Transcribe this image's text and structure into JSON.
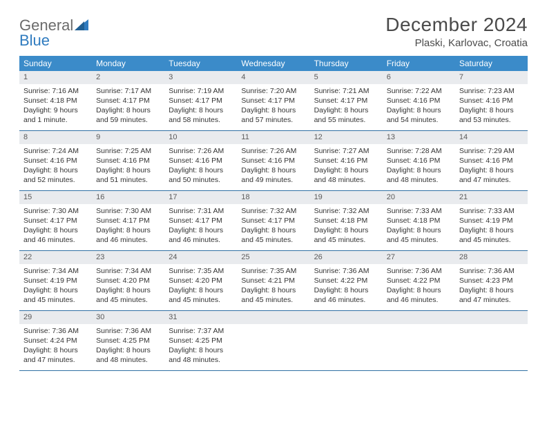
{
  "brand": {
    "part1": "General",
    "part2": "Blue"
  },
  "title": "December 2024",
  "location": "Plaski, Karlovac, Croatia",
  "colors": {
    "header_bg": "#3b8bc9",
    "header_text": "#ffffff",
    "daynum_bg": "#e9ebee",
    "week_divider": "#2f6fa3",
    "brand_gray": "#6b6b6b",
    "brand_blue": "#2f7bbf"
  },
  "dow": [
    "Sunday",
    "Monday",
    "Tuesday",
    "Wednesday",
    "Thursday",
    "Friday",
    "Saturday"
  ],
  "weeks": [
    [
      {
        "n": "1",
        "sr": "Sunrise: 7:16 AM",
        "ss": "Sunset: 4:18 PM",
        "dl1": "Daylight: 9 hours",
        "dl2": "and 1 minute."
      },
      {
        "n": "2",
        "sr": "Sunrise: 7:17 AM",
        "ss": "Sunset: 4:17 PM",
        "dl1": "Daylight: 8 hours",
        "dl2": "and 59 minutes."
      },
      {
        "n": "3",
        "sr": "Sunrise: 7:19 AM",
        "ss": "Sunset: 4:17 PM",
        "dl1": "Daylight: 8 hours",
        "dl2": "and 58 minutes."
      },
      {
        "n": "4",
        "sr": "Sunrise: 7:20 AM",
        "ss": "Sunset: 4:17 PM",
        "dl1": "Daylight: 8 hours",
        "dl2": "and 57 minutes."
      },
      {
        "n": "5",
        "sr": "Sunrise: 7:21 AM",
        "ss": "Sunset: 4:17 PM",
        "dl1": "Daylight: 8 hours",
        "dl2": "and 55 minutes."
      },
      {
        "n": "6",
        "sr": "Sunrise: 7:22 AM",
        "ss": "Sunset: 4:16 PM",
        "dl1": "Daylight: 8 hours",
        "dl2": "and 54 minutes."
      },
      {
        "n": "7",
        "sr": "Sunrise: 7:23 AM",
        "ss": "Sunset: 4:16 PM",
        "dl1": "Daylight: 8 hours",
        "dl2": "and 53 minutes."
      }
    ],
    [
      {
        "n": "8",
        "sr": "Sunrise: 7:24 AM",
        "ss": "Sunset: 4:16 PM",
        "dl1": "Daylight: 8 hours",
        "dl2": "and 52 minutes."
      },
      {
        "n": "9",
        "sr": "Sunrise: 7:25 AM",
        "ss": "Sunset: 4:16 PM",
        "dl1": "Daylight: 8 hours",
        "dl2": "and 51 minutes."
      },
      {
        "n": "10",
        "sr": "Sunrise: 7:26 AM",
        "ss": "Sunset: 4:16 PM",
        "dl1": "Daylight: 8 hours",
        "dl2": "and 50 minutes."
      },
      {
        "n": "11",
        "sr": "Sunrise: 7:26 AM",
        "ss": "Sunset: 4:16 PM",
        "dl1": "Daylight: 8 hours",
        "dl2": "and 49 minutes."
      },
      {
        "n": "12",
        "sr": "Sunrise: 7:27 AM",
        "ss": "Sunset: 4:16 PM",
        "dl1": "Daylight: 8 hours",
        "dl2": "and 48 minutes."
      },
      {
        "n": "13",
        "sr": "Sunrise: 7:28 AM",
        "ss": "Sunset: 4:16 PM",
        "dl1": "Daylight: 8 hours",
        "dl2": "and 48 minutes."
      },
      {
        "n": "14",
        "sr": "Sunrise: 7:29 AM",
        "ss": "Sunset: 4:16 PM",
        "dl1": "Daylight: 8 hours",
        "dl2": "and 47 minutes."
      }
    ],
    [
      {
        "n": "15",
        "sr": "Sunrise: 7:30 AM",
        "ss": "Sunset: 4:17 PM",
        "dl1": "Daylight: 8 hours",
        "dl2": "and 46 minutes."
      },
      {
        "n": "16",
        "sr": "Sunrise: 7:30 AM",
        "ss": "Sunset: 4:17 PM",
        "dl1": "Daylight: 8 hours",
        "dl2": "and 46 minutes."
      },
      {
        "n": "17",
        "sr": "Sunrise: 7:31 AM",
        "ss": "Sunset: 4:17 PM",
        "dl1": "Daylight: 8 hours",
        "dl2": "and 46 minutes."
      },
      {
        "n": "18",
        "sr": "Sunrise: 7:32 AM",
        "ss": "Sunset: 4:17 PM",
        "dl1": "Daylight: 8 hours",
        "dl2": "and 45 minutes."
      },
      {
        "n": "19",
        "sr": "Sunrise: 7:32 AM",
        "ss": "Sunset: 4:18 PM",
        "dl1": "Daylight: 8 hours",
        "dl2": "and 45 minutes."
      },
      {
        "n": "20",
        "sr": "Sunrise: 7:33 AM",
        "ss": "Sunset: 4:18 PM",
        "dl1": "Daylight: 8 hours",
        "dl2": "and 45 minutes."
      },
      {
        "n": "21",
        "sr": "Sunrise: 7:33 AM",
        "ss": "Sunset: 4:19 PM",
        "dl1": "Daylight: 8 hours",
        "dl2": "and 45 minutes."
      }
    ],
    [
      {
        "n": "22",
        "sr": "Sunrise: 7:34 AM",
        "ss": "Sunset: 4:19 PM",
        "dl1": "Daylight: 8 hours",
        "dl2": "and 45 minutes."
      },
      {
        "n": "23",
        "sr": "Sunrise: 7:34 AM",
        "ss": "Sunset: 4:20 PM",
        "dl1": "Daylight: 8 hours",
        "dl2": "and 45 minutes."
      },
      {
        "n": "24",
        "sr": "Sunrise: 7:35 AM",
        "ss": "Sunset: 4:20 PM",
        "dl1": "Daylight: 8 hours",
        "dl2": "and 45 minutes."
      },
      {
        "n": "25",
        "sr": "Sunrise: 7:35 AM",
        "ss": "Sunset: 4:21 PM",
        "dl1": "Daylight: 8 hours",
        "dl2": "and 45 minutes."
      },
      {
        "n": "26",
        "sr": "Sunrise: 7:36 AM",
        "ss": "Sunset: 4:22 PM",
        "dl1": "Daylight: 8 hours",
        "dl2": "and 46 minutes."
      },
      {
        "n": "27",
        "sr": "Sunrise: 7:36 AM",
        "ss": "Sunset: 4:22 PM",
        "dl1": "Daylight: 8 hours",
        "dl2": "and 46 minutes."
      },
      {
        "n": "28",
        "sr": "Sunrise: 7:36 AM",
        "ss": "Sunset: 4:23 PM",
        "dl1": "Daylight: 8 hours",
        "dl2": "and 47 minutes."
      }
    ],
    [
      {
        "n": "29",
        "sr": "Sunrise: 7:36 AM",
        "ss": "Sunset: 4:24 PM",
        "dl1": "Daylight: 8 hours",
        "dl2": "and 47 minutes."
      },
      {
        "n": "30",
        "sr": "Sunrise: 7:36 AM",
        "ss": "Sunset: 4:25 PM",
        "dl1": "Daylight: 8 hours",
        "dl2": "and 48 minutes."
      },
      {
        "n": "31",
        "sr": "Sunrise: 7:37 AM",
        "ss": "Sunset: 4:25 PM",
        "dl1": "Daylight: 8 hours",
        "dl2": "and 48 minutes."
      },
      {
        "empty": true
      },
      {
        "empty": true
      },
      {
        "empty": true
      },
      {
        "empty": true
      }
    ]
  ]
}
